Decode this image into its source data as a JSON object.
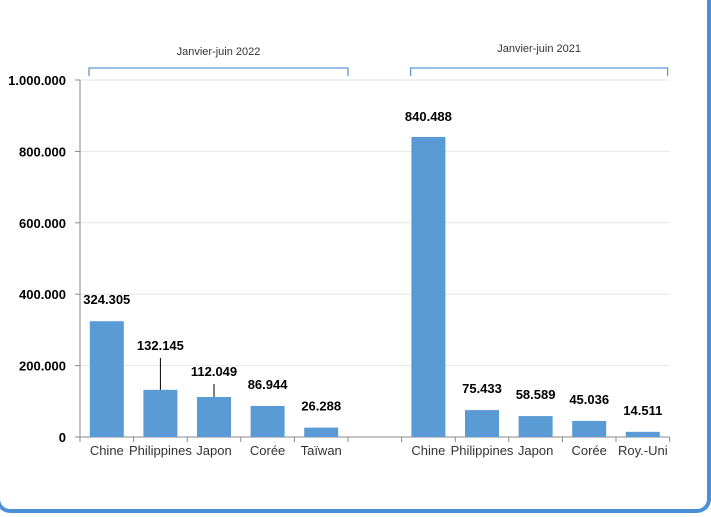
{
  "chart_data": {
    "type": "bar",
    "groups": [
      {
        "label": "Janvier-juin 2022",
        "categories": [
          "Chine",
          "Philippines",
          "Japon",
          "Corée",
          "Taïwan"
        ],
        "values": [
          324305,
          132145,
          112049,
          86944,
          26288
        ],
        "data_labels": [
          "324.305",
          "132.145",
          "112.049",
          "86.944",
          "26.288"
        ]
      },
      {
        "label": "Janvier-juin 2021",
        "categories": [
          "Chine",
          "Philippines",
          "Japon",
          "Corée",
          "Roy.-Uni"
        ],
        "values": [
          840488,
          75433,
          58589,
          45036,
          14511
        ],
        "data_labels": [
          "840.488",
          "75.433",
          "58.589",
          "45.036",
          "14.511"
        ]
      }
    ],
    "ylim": [
      0,
      1000000
    ],
    "yticks": [
      0,
      200000,
      400000,
      600000,
      800000,
      1000000
    ],
    "ytick_labels": [
      "0",
      "200.000",
      "400.000",
      "600.000",
      "800.000",
      "1.000.000"
    ],
    "grid": true,
    "bar_color": "#5b9bd5",
    "bracket_color": "#5b9bd5"
  }
}
